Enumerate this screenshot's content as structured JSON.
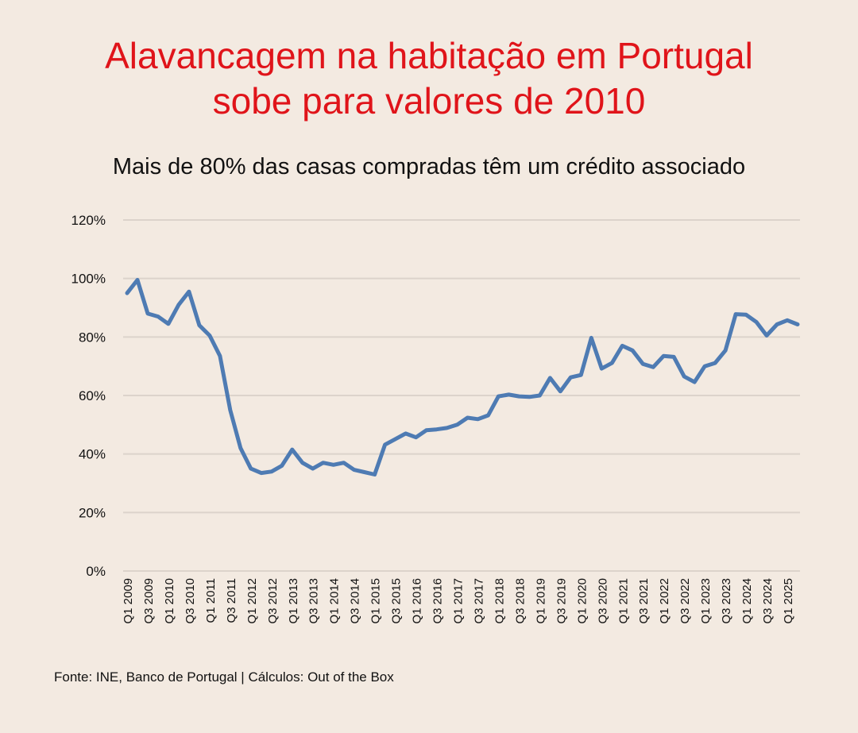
{
  "title_lines": [
    "Alavancagem na habitação em Portugal",
    "sobe para valores de 2010"
  ],
  "colors": {
    "title": "#E0141A",
    "line": "#4E7BB3",
    "grid": "#DCD3CB",
    "background": "#F3EAE1"
  },
  "chart_data": {
    "type": "line",
    "title": "Alavancagem na habitação em Portugal sobe para valores de 2010",
    "subtitle": "Mais de 80% das casas compradas têm um crédito associado",
    "xlabel": "",
    "ylabel": "",
    "ylim": [
      0,
      120
    ],
    "yticks": [
      0,
      20,
      40,
      60,
      80,
      100,
      120
    ],
    "ytick_labels": [
      "0%",
      "20%",
      "40%",
      "60%",
      "80%",
      "100%",
      "120%"
    ],
    "grid": true,
    "legend": "none",
    "x": [
      "Q1 2009",
      "Q2 2009",
      "Q3 2009",
      "Q4 2009",
      "Q1 2010",
      "Q2 2010",
      "Q3 2010",
      "Q4 2010",
      "Q1 2011",
      "Q2 2011",
      "Q3 2011",
      "Q4 2011",
      "Q1 2012",
      "Q2 2012",
      "Q3 2012",
      "Q4 2012",
      "Q1 2013",
      "Q2 2013",
      "Q3 2013",
      "Q4 2013",
      "Q1 2014",
      "Q2 2014",
      "Q3 2014",
      "Q4 2014",
      "Q1 2015",
      "Q2 2015",
      "Q3 2015",
      "Q4 2015",
      "Q1 2016",
      "Q2 2016",
      "Q3 2016",
      "Q4 2016",
      "Q1 2017",
      "Q2 2017",
      "Q3 2017",
      "Q4 2017",
      "Q1 2018",
      "Q2 2018",
      "Q3 2018",
      "Q4 2018",
      "Q1 2019",
      "Q2 2019",
      "Q3 2019",
      "Q4 2019",
      "Q1 2020",
      "Q2 2020",
      "Q3 2020",
      "Q4 2020",
      "Q1 2021",
      "Q2 2021",
      "Q3 2021",
      "Q4 2021",
      "Q1 2022",
      "Q2 2022",
      "Q3 2022",
      "Q4 2022",
      "Q1 2023",
      "Q2 2023",
      "Q3 2023",
      "Q4 2023",
      "Q1 2024",
      "Q2 2024",
      "Q3 2024",
      "Q4 2024",
      "Q1 2025",
      "Q2 2025"
    ],
    "xtick_labels": [
      "Q1 2009",
      "Q3 2009",
      "Q1 2010",
      "Q3 2010",
      "Q1 2011",
      "Q3 2011",
      "Q1 2012",
      "Q3 2012",
      "Q1 2013",
      "Q3 2013",
      "Q1 2014",
      "Q3 2014",
      "Q1 2015",
      "Q3 2015",
      "Q1 2016",
      "Q3 2016",
      "Q1 2017",
      "Q3 2017",
      "Q1 2018",
      "Q3 2018",
      "Q1 2019",
      "Q3 2019",
      "Q1 2020",
      "Q3 2020",
      "Q1 2021",
      "Q3 2021",
      "Q1 2022",
      "Q3 2022",
      "Q1 2023",
      "Q3 2023",
      "Q1 2024",
      "Q3 2024",
      "Q1 2025"
    ],
    "series": [
      {
        "name": "Alavancagem",
        "values": [
          95,
          99.5,
          88,
          87,
          84.5,
          91,
          95.5,
          84,
          80.5,
          73.5,
          55,
          42,
          35,
          33.5,
          34,
          36,
          41.5,
          37,
          35,
          37,
          36.3,
          37,
          34.6,
          33.8,
          33,
          43.2,
          45.1,
          47,
          45.7,
          48.1,
          48.4,
          48.9,
          50,
          52.4,
          51.9,
          53.2,
          59.7,
          60.3,
          59.7,
          59.5,
          60,
          66,
          61.4,
          66.2,
          67,
          79.7,
          69.2,
          71.1,
          77,
          75.4,
          70.8,
          69.7,
          73.5,
          73.2,
          66.5,
          64.6,
          70,
          71.1,
          75.4,
          87.8,
          87.6,
          85.1,
          80.5,
          84.3,
          85.7,
          84.3
        ]
      }
    ]
  },
  "source": "Fonte: INE, Banco de Portugal | Cálculos: Out of the Box"
}
